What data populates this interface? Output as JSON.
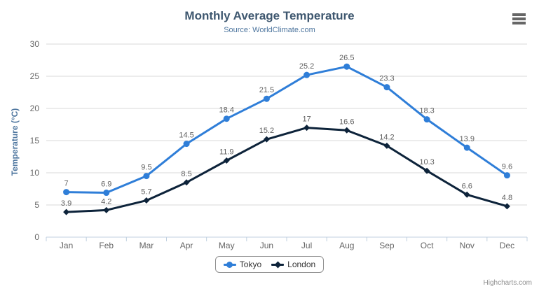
{
  "header": {
    "title": "Monthly Average Temperature",
    "subtitle": "Source: WorldClimate.com"
  },
  "context_menu": {
    "icon": "hamburger-menu-icon"
  },
  "legend": {
    "position": "bottom",
    "items": [
      {
        "label": "Tokyo",
        "color": "#2f7ed8",
        "marker": "circle"
      },
      {
        "label": "London",
        "color": "#0d233a",
        "marker": "diamond"
      }
    ]
  },
  "credits": {
    "label": "Highcharts.com"
  },
  "colors": {
    "title": "#3e576f",
    "subtitle": "#4d759e",
    "axis_title": "#4d759e",
    "tick_label": "#666666",
    "data_label": "#606060",
    "gridline": "#d8d8d8",
    "axis_line": "#c0d0e0",
    "legend_border": "#909090",
    "series_tokyo": "#2f7ed8",
    "series_london": "#0d233a"
  },
  "chart_data": {
    "type": "line",
    "title": "Monthly Average Temperature",
    "subtitle": "Source: WorldClimate.com",
    "xlabel": "",
    "ylabel": "Temperature (°C)",
    "categories": [
      "Jan",
      "Feb",
      "Mar",
      "Apr",
      "May",
      "Jun",
      "Jul",
      "Aug",
      "Sep",
      "Oct",
      "Nov",
      "Dec"
    ],
    "series": [
      {
        "name": "Tokyo",
        "color": "#2f7ed8",
        "marker": "circle",
        "values": [
          7.0,
          6.9,
          9.5,
          14.5,
          18.4,
          21.5,
          25.2,
          26.5,
          23.3,
          18.3,
          13.9,
          9.6
        ]
      },
      {
        "name": "London",
        "color": "#0d233a",
        "marker": "diamond",
        "values": [
          3.9,
          4.2,
          5.7,
          8.5,
          11.9,
          15.2,
          17.0,
          16.6,
          14.2,
          10.3,
          6.6,
          4.8
        ]
      }
    ],
    "ylim": [
      0,
      30
    ],
    "ytick_step": 5,
    "grid": true,
    "data_labels": true,
    "legend_position": "bottom"
  }
}
